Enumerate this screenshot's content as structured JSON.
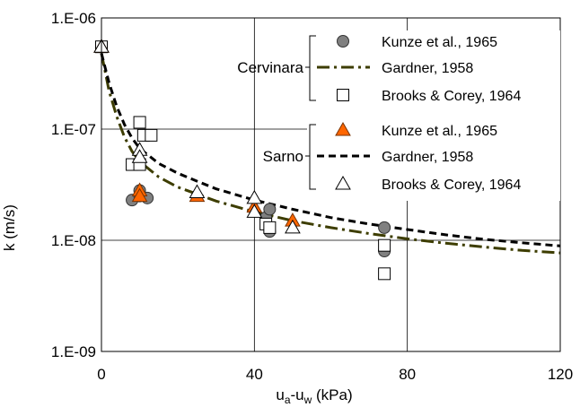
{
  "chart_data": {
    "type": "scatter",
    "xlabel_main": "u",
    "xlabel_sub_a": "a",
    "xlabel_mid": "-u",
    "xlabel_sub_w": "w",
    "xlabel_unit": " (kPa)",
    "ylabel": "k (m/s)",
    "xlim": [
      0,
      120
    ],
    "ylim": [
      1e-09,
      1e-06
    ],
    "yscale": "log",
    "grid": true,
    "x_ticks": [
      {
        "value": 0,
        "label": "0"
      },
      {
        "value": 40,
        "label": "40"
      },
      {
        "value": 80,
        "label": "80"
      },
      {
        "value": 120,
        "label": "120"
      }
    ],
    "y_ticks": [
      {
        "value": 1e-06,
        "label": "1.E-06"
      },
      {
        "value": 1e-07,
        "label": "1.E-07"
      },
      {
        "value": 1e-08,
        "label": "1.E-08"
      },
      {
        "value": 1e-09,
        "label": "1.E-09"
      }
    ],
    "groups": [
      {
        "name": "Cervinara",
        "series": [
          {
            "name": "Kunze et al., 1965",
            "kind": "circle",
            "color": "#808080",
            "points": [
              [
                0,
                5.5e-07
              ],
              [
                8,
                2.3e-08
              ],
              [
                10,
                2.8e-08
              ],
              [
                10,
                2.5e-08
              ],
              [
                12,
                2.4e-08
              ],
              [
                43,
                1.6e-08
              ],
              [
                44,
                1.9e-08
              ],
              [
                44,
                1.2e-08
              ],
              [
                74,
                1.3e-08
              ],
              [
                74,
                8e-09
              ]
            ]
          },
          {
            "name": "Gardner, 1958",
            "kind": "line",
            "style": "dashdot",
            "color": "#3d3d00",
            "points": [
              [
                0,
                4.8e-07
              ],
              [
                2,
                2.2e-07
              ],
              [
                4,
                1.3e-07
              ],
              [
                6,
                8.5e-08
              ],
              [
                8,
                6.3e-08
              ],
              [
                10,
                5.1e-08
              ],
              [
                15,
                3.7e-08
              ],
              [
                20,
                3e-08
              ],
              [
                25,
                2.6e-08
              ],
              [
                30,
                2.25e-08
              ],
              [
                40,
                1.8e-08
              ],
              [
                50,
                1.5e-08
              ],
              [
                60,
                1.3e-08
              ],
              [
                70,
                1.15e-08
              ],
              [
                80,
                1.03e-08
              ],
              [
                90,
                9.4e-09
              ],
              [
                100,
                8.7e-09
              ],
              [
                110,
                8.1e-09
              ],
              [
                120,
                7.7e-09
              ]
            ]
          },
          {
            "name": "Brooks & Corey, 1964",
            "kind": "square",
            "color": "#ffffff",
            "points": [
              [
                0,
                5.5e-07
              ],
              [
                8,
                4.8e-08
              ],
              [
                10,
                1.15e-07
              ],
              [
                10,
                4.8e-08
              ],
              [
                11,
                8.8e-08
              ],
              [
                13,
                8.8e-08
              ],
              [
                43,
                1.4e-08
              ],
              [
                44,
                1.3e-08
              ],
              [
                74,
                9e-09
              ],
              [
                74,
                5e-09
              ]
            ]
          }
        ]
      },
      {
        "name": "Sarno",
        "series": [
          {
            "name": "Kunze et al., 1965",
            "kind": "triangle",
            "color": "#ff6600",
            "points": [
              [
                0,
                5.5e-07
              ],
              [
                10,
                2.8e-08
              ],
              [
                10,
                2.5e-08
              ],
              [
                25,
                2.5e-08
              ],
              [
                40,
                2e-08
              ],
              [
                50,
                1.5e-08
              ]
            ]
          },
          {
            "name": "Gardner, 1958",
            "kind": "line",
            "style": "dash",
            "color": "#000000",
            "points": [
              [
                0,
                4.8e-07
              ],
              [
                2,
                2.6e-07
              ],
              [
                4,
                1.6e-07
              ],
              [
                6,
                1.1e-07
              ],
              [
                8,
                8.3e-08
              ],
              [
                10,
                6.7e-08
              ],
              [
                15,
                4.9e-08
              ],
              [
                20,
                4e-08
              ],
              [
                25,
                3.4e-08
              ],
              [
                30,
                2.9e-08
              ],
              [
                40,
                2.3e-08
              ],
              [
                50,
                1.9e-08
              ],
              [
                60,
                1.6e-08
              ],
              [
                70,
                1.4e-08
              ],
              [
                80,
                1.25e-08
              ],
              [
                90,
                1.12e-08
              ],
              [
                100,
                1.02e-08
              ],
              [
                110,
                9.5e-09
              ],
              [
                120,
                8.9e-09
              ]
            ]
          },
          {
            "name": "Brooks & Corey, 1964",
            "kind": "triangle-open",
            "color": "#ffffff",
            "points": [
              [
                0,
                5.5e-07
              ],
              [
                10,
                6.5e-08
              ],
              [
                10,
                5.6e-08
              ],
              [
                25,
                2.7e-08
              ],
              [
                40,
                2.4e-08
              ],
              [
                40,
                1.8e-08
              ],
              [
                50,
                1.3e-08
              ]
            ]
          }
        ]
      }
    ]
  }
}
